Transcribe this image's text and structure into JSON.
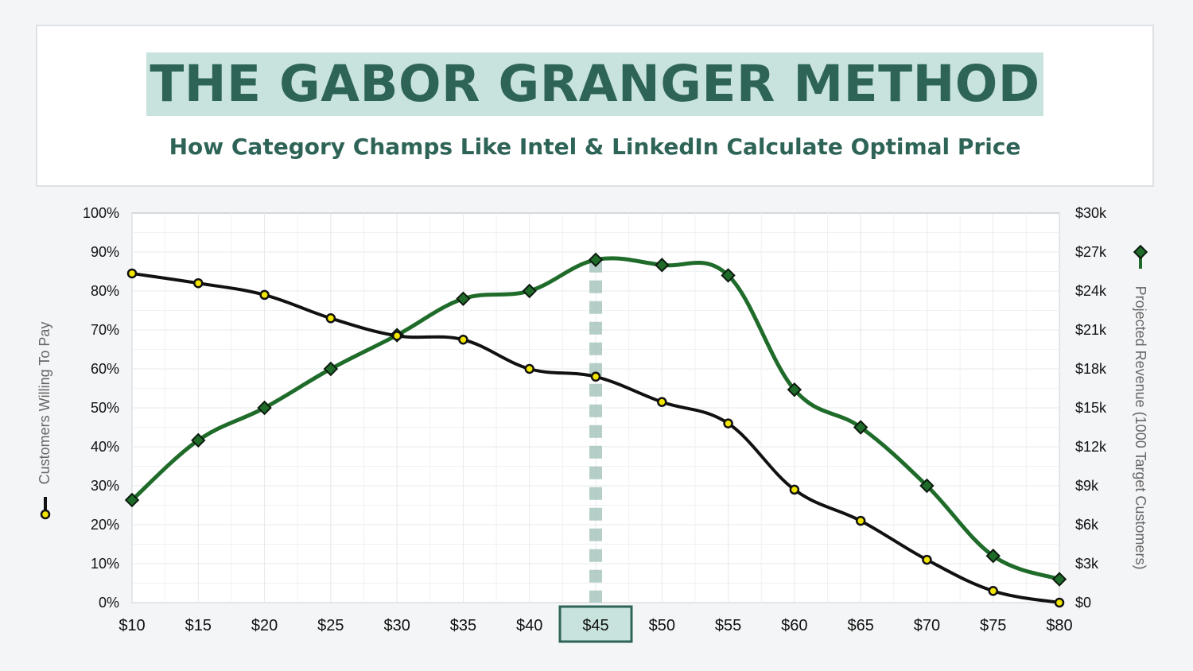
{
  "header": {
    "title": "THE GABOR GRANGER METHOD",
    "subtitle": "How Category Champs Like Intel & LinkedIn Calculate Optimal Price"
  },
  "colors": {
    "willing": "#111111",
    "revenue": "#1f6b2a",
    "highlight_fill": "#c8e3dd",
    "highlight_border": "#2e6457",
    "grid": "#e6e8eb",
    "marker_yellow": "#f2e600"
  },
  "chart_data": {
    "type": "line",
    "x": [
      "$10",
      "$15",
      "$20",
      "$25",
      "$30",
      "$35",
      "$40",
      "$45",
      "$50",
      "$55",
      "$60",
      "$65",
      "$70",
      "$75",
      "$80"
    ],
    "series": [
      {
        "name": "Customers Willing To Pay",
        "axis": "left",
        "values": [
          84.5,
          82,
          79,
          73,
          68.5,
          67.5,
          60,
          58,
          51.5,
          46,
          29,
          21,
          11,
          3,
          0
        ]
      },
      {
        "name": "Projected Revenue (1000 Target Customers)",
        "axis": "right",
        "values": [
          7900,
          12500,
          15000,
          18000,
          20600,
          23400,
          24000,
          26400,
          26000,
          25200,
          16400,
          13500,
          9000,
          3600,
          1800
        ]
      }
    ],
    "y_left": {
      "label": "Customers Willing To Pay",
      "ticks": [
        "0%",
        "10%",
        "20%",
        "30%",
        "40%",
        "50%",
        "60%",
        "70%",
        "80%",
        "90%",
        "100%"
      ],
      "lim": [
        0,
        100
      ]
    },
    "y_right": {
      "label": "Projected Revenue (1000 Target Customers)",
      "ticks": [
        "$0",
        "$3k",
        "$6k",
        "$9k",
        "$12k",
        "$15k",
        "$18k",
        "$21k",
        "$24k",
        "$27k",
        "$30k"
      ],
      "lim": [
        0,
        30000
      ]
    },
    "highlight": {
      "x": "$45"
    },
    "grid": true
  }
}
